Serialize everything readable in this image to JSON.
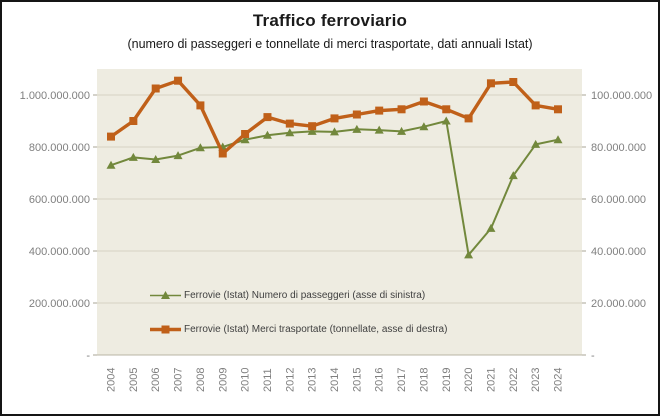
{
  "window": {
    "background": "#ffffff",
    "border_color": "#151515"
  },
  "chart": {
    "plot_bg": "#eeece1",
    "gridline_color": "#d6d2c4",
    "baseline_color": "#b8b4a4",
    "tick_color": "#a8a496",
    "axis_label_color": "#7f7f7f",
    "legend_text_color": "#3f3f3f"
  },
  "chart_data": {
    "type": "line",
    "title": "Traffico ferroviario",
    "subtitle": "(numero di passeggeri e tonnellate di merci trasportate, dati annuali Istat)",
    "x": [
      2004,
      2005,
      2006,
      2007,
      2008,
      2009,
      2010,
      2011,
      2012,
      2013,
      2014,
      2015,
      2016,
      2017,
      2018,
      2019,
      2020,
      2021,
      2022,
      2023,
      2024
    ],
    "series": [
      {
        "name": "Ferrovie (Istat) Numero di passeggeri (asse di sinistra)",
        "axis": "left",
        "color": "#72883c",
        "marker": "triangle",
        "values": [
          730000000,
          760000000,
          752000000,
          767000000,
          797000000,
          800000000,
          828000000,
          845000000,
          855000000,
          860000000,
          858000000,
          868000000,
          865000000,
          860000000,
          878000000,
          900000000,
          385000000,
          487000000,
          690000000,
          810000000,
          828000000
        ]
      },
      {
        "name": "Ferrovie (Istat) Merci trasportate (tonnellate, asse di destra)",
        "axis": "right",
        "color": "#c06019",
        "marker": "square",
        "values": [
          84000000,
          90000000,
          102500000,
          105500000,
          96000000,
          77500000,
          85000000,
          91500000,
          89000000,
          88000000,
          91000000,
          92500000,
          94000000,
          94500000,
          97500000,
          94500000,
          91000000,
          104500000,
          105000000,
          96000000,
          94500000
        ]
      }
    ],
    "left_axis": {
      "min": 0,
      "max": 1100000000,
      "tick_values": [
        1000000000,
        800000000,
        600000000,
        400000000,
        200000000,
        0
      ],
      "tick_labels": [
        "1.000.000.000",
        "800.000.000",
        "600.000.000",
        "400.000.000",
        "200.000.000",
        "-"
      ]
    },
    "right_axis": {
      "min": 0,
      "max": 110000000,
      "tick_values": [
        100000000,
        80000000,
        60000000,
        40000000,
        20000000,
        0
      ],
      "tick_labels": [
        "100.000.000",
        "80.000.000",
        "60.000.000",
        "40.000.000",
        "20.000.000",
        "-"
      ]
    },
    "grid": true,
    "legend_position": "inside-bottom-left"
  }
}
